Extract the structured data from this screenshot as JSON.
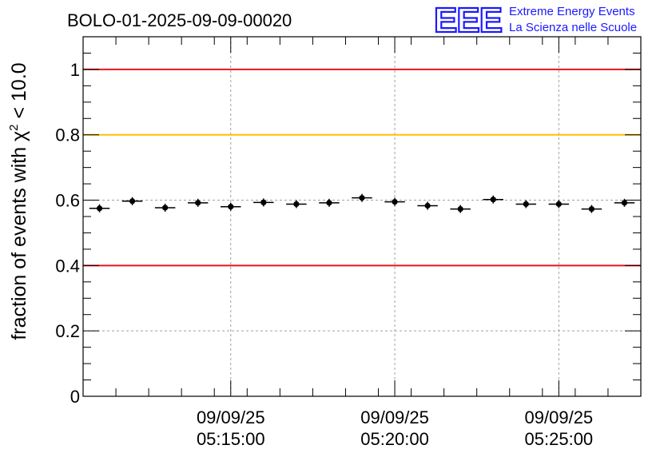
{
  "chart_data": {
    "type": "scatter",
    "title": "BOLO-01-2025-09-09-00020",
    "ylabel": "fraction of events with χ² < 10.0",
    "ylabel_parts": {
      "prefix": "fraction of events with ",
      "symbol": "χ",
      "sup": "2",
      "suffix": " < 10.0"
    },
    "xlabel": "",
    "ylim": [
      0,
      1.1
    ],
    "xlim": [
      0,
      17
    ],
    "y_ticks": [
      0,
      0.2,
      0.4,
      0.6,
      0.8,
      1
    ],
    "y_tick_labels": [
      "0",
      "0.2",
      "0.4",
      "0.6",
      "0.8",
      "1"
    ],
    "x_major_ticks": [
      {
        "x": 4.5,
        "date": "09/09/25",
        "time": "05:15:00"
      },
      {
        "x": 9.5,
        "date": "09/09/25",
        "time": "05:20:00"
      },
      {
        "x": 14.5,
        "date": "09/09/25",
        "time": "05:25:00"
      }
    ],
    "x_minor_step": 1,
    "grid": true,
    "points": [
      {
        "x": 0.5,
        "y": 0.575
      },
      {
        "x": 1.5,
        "y": 0.597
      },
      {
        "x": 2.5,
        "y": 0.577
      },
      {
        "x": 3.5,
        "y": 0.592
      },
      {
        "x": 4.5,
        "y": 0.58
      },
      {
        "x": 5.5,
        "y": 0.593
      },
      {
        "x": 6.5,
        "y": 0.588
      },
      {
        "x": 7.5,
        "y": 0.592
      },
      {
        "x": 8.5,
        "y": 0.607
      },
      {
        "x": 9.5,
        "y": 0.595
      },
      {
        "x": 10.5,
        "y": 0.583
      },
      {
        "x": 11.5,
        "y": 0.573
      },
      {
        "x": 12.5,
        "y": 0.602
      },
      {
        "x": 13.5,
        "y": 0.588
      },
      {
        "x": 14.5,
        "y": 0.588
      },
      {
        "x": 15.5,
        "y": 0.573
      },
      {
        "x": 16.5,
        "y": 0.592
      }
    ],
    "reference_lines": [
      {
        "y": 1.0,
        "color": "#e8141c"
      },
      {
        "y": 0.8,
        "color": "#ffc000"
      },
      {
        "y": 0.4,
        "color": "#e8141c"
      }
    ]
  },
  "logo": {
    "mark": "EEE",
    "line1": "Extreme Energy Events",
    "line2": "La Scienza nelle Scuole",
    "color": "#1a1aff"
  }
}
